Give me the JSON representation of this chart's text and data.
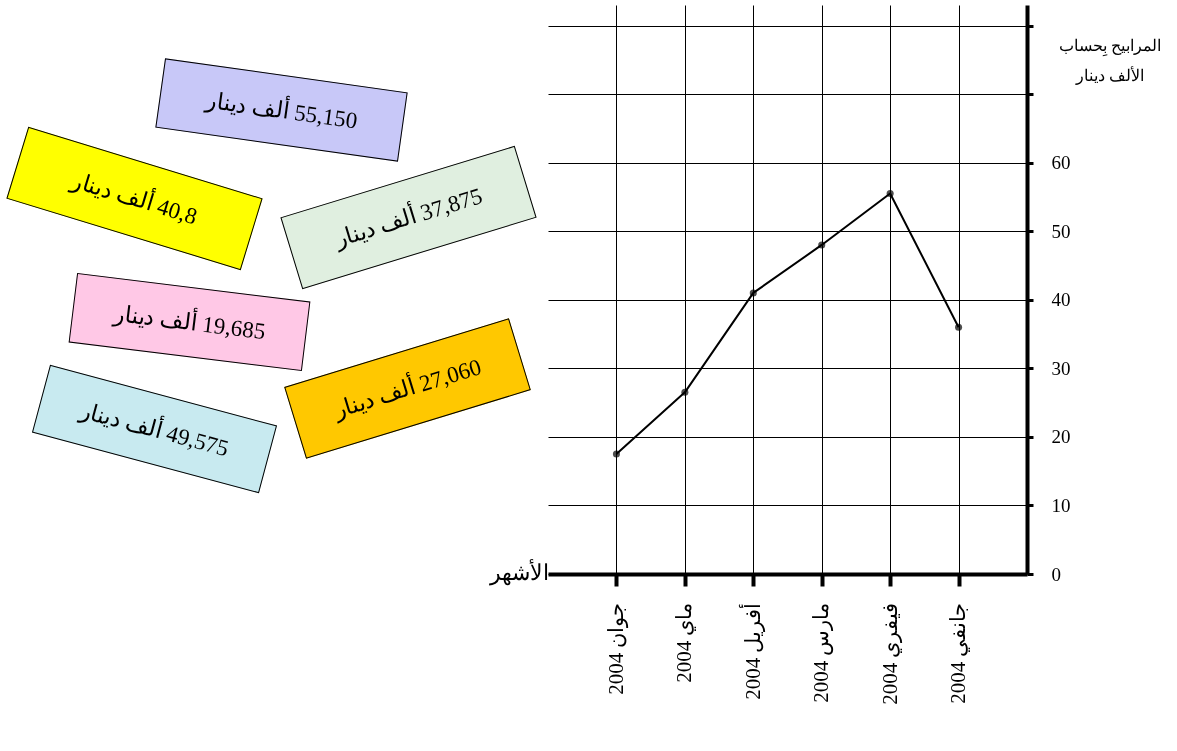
{
  "chart_data": {
    "type": "line",
    "xlabel": "الأشهر",
    "ylabel": "المرابيح بِحساب الألف دينار",
    "categories": [
      "جوان 2004",
      "ماي 2004",
      "أفريل 2004",
      "مارس 2004",
      "فيفري 2004",
      "جانفي 2004"
    ],
    "series": [
      {
        "color": "#000000",
        "values": [
          17.5,
          26.5,
          41,
          48,
          55.5,
          36
        ]
      }
    ],
    "ylim": [
      0,
      83
    ],
    "yticks": [
      0,
      10,
      20,
      30,
      40,
      50,
      60,
      {
        "value": 70,
        "label": null
      },
      {
        "value": 80,
        "label": null
      }
    ],
    "grid": true,
    "marker": "circle",
    "line_style": "solid",
    "annotations": [
      "55,150 ألف دينار",
      "40,8 ألف دينار",
      "37,875 ألف دينار",
      "19,685 ألف دينار",
      "27,060 ألف دينار",
      "49,575 ألف دينار"
    ]
  }
}
